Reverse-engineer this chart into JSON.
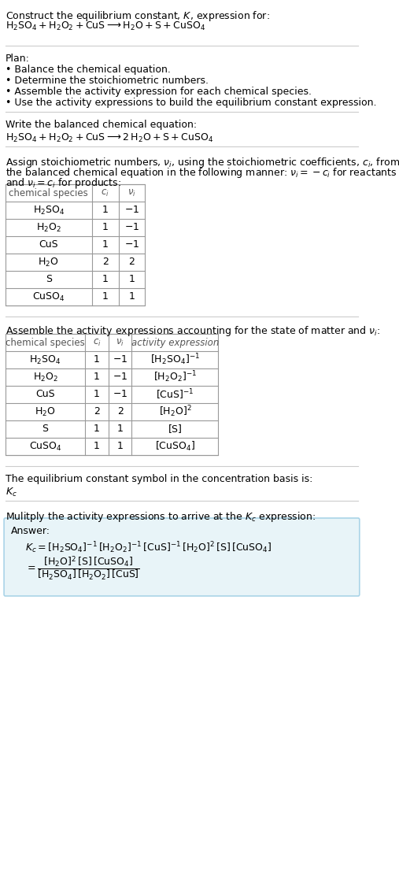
{
  "bg_color": "#ffffff",
  "text_color": "#000000",
  "gray_text": "#555555",
  "table_border": "#cccccc",
  "answer_bg": "#e8f4f8",
  "answer_border": "#aad4e8",
  "title_line1": "Construct the equilibrium constant, $K$, expression for:",
  "title_line2": "$\\mathrm{H_2SO_4 + H_2O_2 + CuS \\longrightarrow H_2O + S + CuSO_4}$",
  "plan_header": "Plan:",
  "plan_items": [
    "\\textbf{\\cdot} Balance the chemical equation.",
    "\\textbf{\\cdot} Determine the stoichiometric numbers.",
    "\\textbf{\\cdot} Assemble the activity expression for each chemical species.",
    "\\textbf{\\cdot} Use the activity expressions to build the equilibrium constant expression."
  ],
  "balanced_header": "Write the balanced chemical equation:",
  "balanced_eq": "$\\mathrm{H_2SO_4 + H_2O_2 + CuS \\longrightarrow 2\\,H_2O + S + CuSO_4}$",
  "stoich_header_line1": "Assign stoichiometric numbers, $\\nu_i$, using the stoichiometric coefficients, $c_i$, from",
  "stoich_header_line2": "the balanced chemical equation in the following manner: $\\nu_i = -c_i$ for reactants",
  "stoich_header_line3": "and $\\nu_i = c_i$ for products:",
  "table1_cols": [
    "chemical species",
    "$c_i$",
    "$\\nu_i$"
  ],
  "table1_rows": [
    [
      "$\\mathrm{H_2SO_4}$",
      "1",
      "$-1$"
    ],
    [
      "$\\mathrm{H_2O_2}$",
      "1",
      "$-1$"
    ],
    [
      "CuS",
      "1",
      "$-1$"
    ],
    [
      "$\\mathrm{H_2O}$",
      "2",
      "2"
    ],
    [
      "S",
      "1",
      "1"
    ],
    [
      "$\\mathrm{CuSO_4}$",
      "1",
      "1"
    ]
  ],
  "activity_header": "Assemble the activity expressions accounting for the state of matter and $\\nu_i$:",
  "table2_cols": [
    "chemical species",
    "$c_i$",
    "$\\nu_i$",
    "activity expression"
  ],
  "table2_rows": [
    [
      "$\\mathrm{H_2SO_4}$",
      "1",
      "$-1$",
      "$[\\mathrm{H_2SO_4}]^{-1}$"
    ],
    [
      "$\\mathrm{H_2O_2}$",
      "1",
      "$-1$",
      "$[\\mathrm{H_2O_2}]^{-1}$"
    ],
    [
      "CuS",
      "1",
      "$-1$",
      "$[\\mathrm{CuS}]^{-1}$"
    ],
    [
      "$\\mathrm{H_2O}$",
      "2",
      "2",
      "$[\\mathrm{H_2O}]^2$"
    ],
    [
      "S",
      "1",
      "1",
      "$[\\mathrm{S}]$"
    ],
    [
      "$\\mathrm{CuSO_4}$",
      "1",
      "1",
      "$[\\mathrm{CuSO_4}]$"
    ]
  ],
  "kc_header": "The equilibrium constant symbol in the concentration basis is:",
  "kc_symbol": "$K_c$",
  "multiply_header": "Mulitply the activity expressions to arrive at the $K_c$ expression:",
  "answer_label": "Answer:",
  "answer_line1": "$K_c = [\\mathrm{H_2SO_4}]^{-1}\\,[\\mathrm{H_2O_2}]^{-1}\\,[\\mathrm{CuS}]^{-1}\\,[\\mathrm{H_2O}]^2\\,[\\mathrm{S}]\\,[\\mathrm{CuSO_4}]$",
  "answer_line2a": "$= \\dfrac{[\\mathrm{H_2O}]^2\\,[\\mathrm{S}]\\,[\\mathrm{CuSO_4}]}{[\\mathrm{H_2SO_4}]\\,[\\mathrm{H_2O_2}]\\,[\\mathrm{CuS}]}$"
}
